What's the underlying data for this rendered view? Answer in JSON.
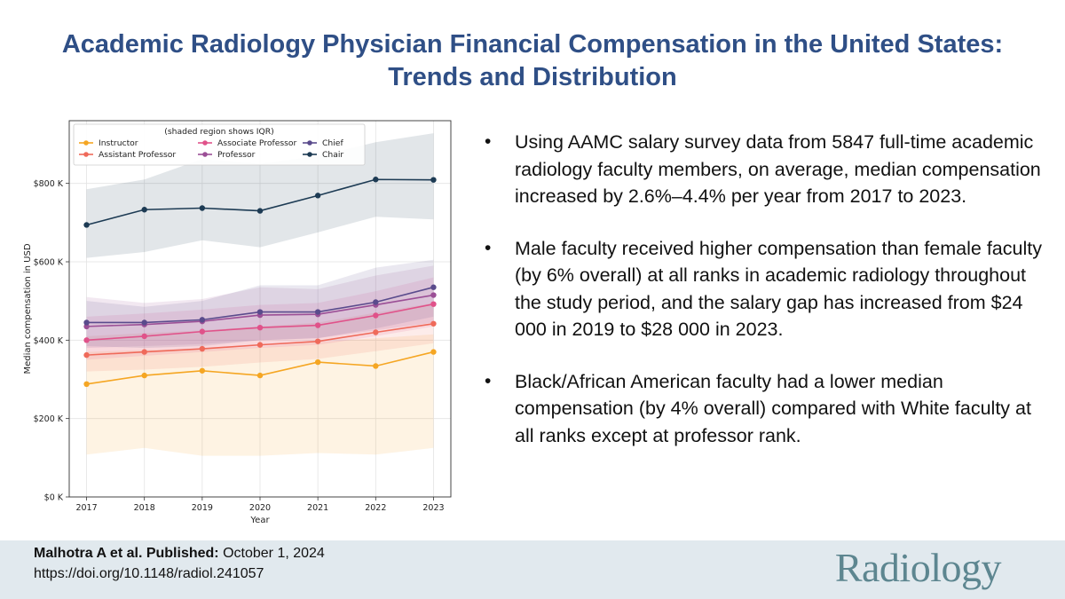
{
  "title": {
    "line1": "Academic Radiology Physician Financial Compensation in the United States:",
    "line2": "Trends and Distribution"
  },
  "bullets": [
    "Using AAMC salary survey data from 5847 full-time academic radiology faculty members, on average, median compensation increased by 2.6%–4.4% per year from 2017 to 2023.",
    "Male faculty received higher compensation than female faculty (by 6% overall) at all ranks in academic radiology throughout the study period, and the salary gap has increased from $24 000 in 2019 to $28 000 in 2023.",
    "Black/African American faculty had a lower median compensation (by 4% overall) compared with White faculty at all ranks except at professor rank."
  ],
  "bullet_symbol": "•",
  "footer": {
    "citation_bold": "Malhotra A et al. Published:",
    "citation_date": "October 1, 2024",
    "doi": "https://doi.org/10.1148/radiol.241057",
    "logo": "Radiology"
  },
  "colors": {
    "title": "#2f4f86",
    "footer_bg": "#e1e9ee",
    "logo": "#5d8690"
  },
  "chart_data": {
    "type": "line",
    "title": "",
    "legend_title": "(shaded region shows IQR)",
    "legend_position": "top-left",
    "xlabel": "Year",
    "ylabel": "Median compensation in USD",
    "x": [
      2017,
      2018,
      2019,
      2020,
      2021,
      2022,
      2023
    ],
    "x_tick_labels": [
      "2017",
      "2018",
      "2019",
      "2020",
      "2021",
      "2022",
      "2023"
    ],
    "ylim": [
      0,
      960000
    ],
    "y_ticks": [
      0,
      200000,
      400000,
      600000,
      800000
    ],
    "y_tick_labels": [
      "$0 K",
      "$200 K",
      "$400 K",
      "$600 K",
      "$800 K"
    ],
    "grid": true,
    "series": [
      {
        "name": "Instructor",
        "color": "#f5a623",
        "values": [
          288000,
          310000,
          322000,
          310000,
          344000,
          334000,
          370000
        ],
        "iqr_low": [
          108000,
          125000,
          105000,
          105000,
          112000,
          108000,
          125000
        ],
        "iqr_high": [
          370000,
          375000,
          378000,
          383000,
          395000,
          405000,
          415000
        ]
      },
      {
        "name": "Assistant Professor",
        "color": "#ef6a5a",
        "values": [
          362000,
          370000,
          378000,
          388000,
          397000,
          420000,
          442000
        ],
        "iqr_low": [
          320000,
          325000,
          332000,
          343000,
          352000,
          372000,
          392000
        ],
        "iqr_high": [
          410000,
          418000,
          425000,
          435000,
          445000,
          470000,
          495000
        ]
      },
      {
        "name": "Associate Professor",
        "color": "#e0528a",
        "values": [
          400000,
          410000,
          422000,
          432000,
          438000,
          463000,
          492000
        ],
        "iqr_low": [
          350000,
          360000,
          370000,
          380000,
          388000,
          410000,
          435000
        ],
        "iqr_high": [
          460000,
          468000,
          478000,
          490000,
          495000,
          525000,
          560000
        ]
      },
      {
        "name": "Professor",
        "color": "#9b4f96",
        "values": [
          435000,
          440000,
          448000,
          464000,
          466000,
          490000,
          515000
        ],
        "iqr_low": [
          380000,
          385000,
          390000,
          400000,
          405000,
          425000,
          445000
        ],
        "iqr_high": [
          510000,
          495000,
          505000,
          535000,
          530000,
          565000,
          590000
        ]
      },
      {
        "name": "Chief",
        "color": "#5a4b8c",
        "values": [
          445000,
          445000,
          452000,
          472000,
          472000,
          497000,
          535000
        ],
        "iqr_low": [
          385000,
          380000,
          385000,
          400000,
          405000,
          430000,
          460000
        ],
        "iqr_high": [
          500000,
          485000,
          500000,
          540000,
          540000,
          585000,
          605000
        ]
      },
      {
        "name": "Chair",
        "color": "#1d3b54",
        "values": [
          694000,
          733000,
          737000,
          730000,
          769000,
          810000,
          809000
        ],
        "iqr_low": [
          610000,
          625000,
          655000,
          637000,
          675000,
          715000,
          708000
        ],
        "iqr_high": [
          785000,
          810000,
          862000,
          850000,
          870000,
          905000,
          928000
        ]
      }
    ]
  }
}
